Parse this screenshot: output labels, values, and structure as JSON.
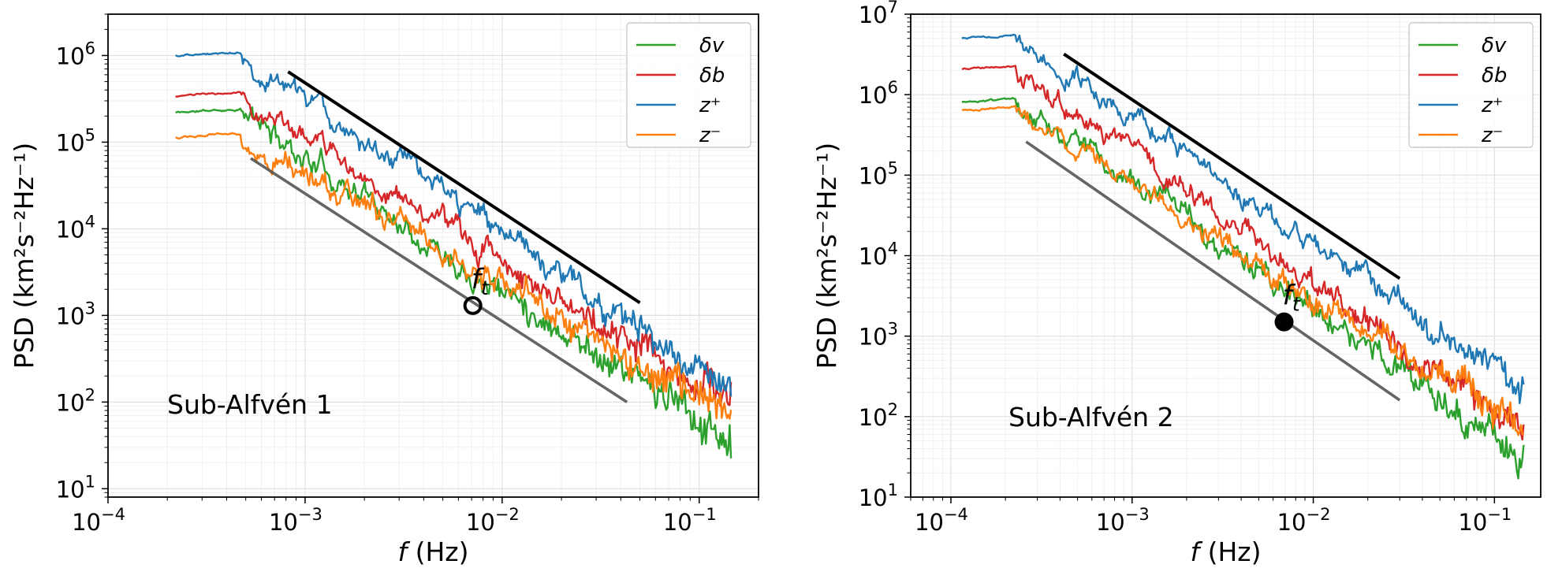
{
  "chart_data": [
    {
      "type": "line",
      "title": "",
      "xlabel_italic": "f",
      "xlabel_rest": " (Hz)",
      "ylabel": "PSD (km²s⁻²Hz⁻¹)",
      "xscale": "log",
      "yscale": "log",
      "xlim": [
        0.0001,
        0.2
      ],
      "ylim": [
        8,
        3000000
      ],
      "grid": true,
      "legend_position": "top-right",
      "annotation": "Sub-Alfvén 1",
      "point_label": "ft",
      "x_ticks": [
        {
          "value": 0.0001,
          "base": "10",
          "exp": "−4"
        },
        {
          "value": 0.001,
          "base": "10",
          "exp": "−3"
        },
        {
          "value": 0.01,
          "base": "10",
          "exp": "−2"
        },
        {
          "value": 0.1,
          "base": "10",
          "exp": "−1"
        }
      ],
      "y_ticks": [
        {
          "value": 10,
          "base": "10",
          "exp": "1"
        },
        {
          "value": 100,
          "base": "10",
          "exp": "2"
        },
        {
          "value": 1000,
          "base": "10",
          "exp": "3"
        },
        {
          "value": 10000,
          "base": "10",
          "exp": "4"
        },
        {
          "value": 100000,
          "base": "10",
          "exp": "5"
        },
        {
          "value": 1000000,
          "base": "10",
          "exp": "6"
        }
      ],
      "series": [
        {
          "name": "δv",
          "label": "δv",
          "color": "#2ca02c",
          "x_start": 0.00022,
          "x_end": 0.145,
          "flat_level": 220000,
          "knee": 0.00047,
          "end_level": 35,
          "noise": 0.12,
          "seed": 11,
          "bump_amp": 0.35
        },
        {
          "name": "δb",
          "label": "δb",
          "color": "#d62728",
          "x_start": 0.00022,
          "x_end": 0.145,
          "flat_level": 340000,
          "knee": 0.00047,
          "end_level": 90,
          "noise": 0.1,
          "seed": 23,
          "bump_amp": 0.3
        },
        {
          "name": "z+",
          "label": "z⁺",
          "color": "#1f77b4",
          "x_start": 0.00022,
          "x_end": 0.145,
          "flat_level": 1000000,
          "knee": 0.00047,
          "end_level": 140,
          "noise": 0.09,
          "seed": 37,
          "bump_amp": 0.3
        },
        {
          "name": "z−",
          "label": "z⁻",
          "color": "#ff7f0e",
          "x_start": 0.00022,
          "x_end": 0.145,
          "flat_level": 115000,
          "knee": 0.00047,
          "end_level": 70,
          "noise": 0.11,
          "seed": 53,
          "bump_amp": 0.35
        }
      ],
      "fit_lines": [
        {
          "color": "#000000",
          "x": [
            0.00082,
            0.05
          ],
          "y": [
            650000,
            1400
          ]
        },
        {
          "color": "#555555",
          "x": [
            0.00053,
            0.043
          ],
          "y": [
            65000,
            100
          ]
        }
      ],
      "point": {
        "x": 0.0071,
        "y": 1300,
        "filled": false
      }
    },
    {
      "type": "line",
      "title": "",
      "xlabel_italic": "f",
      "xlabel_rest": " (Hz)",
      "ylabel": "PSD (km²s⁻²Hz⁻¹)",
      "xscale": "log",
      "yscale": "log",
      "xlim": [
        6e-05,
        0.18
      ],
      "ylim": [
        10,
        10000000
      ],
      "grid": true,
      "legend_position": "top-right",
      "annotation": "Sub-Alfvén 2",
      "point_label": "ft",
      "x_ticks": [
        {
          "value": 0.0001,
          "base": "10",
          "exp": "−4"
        },
        {
          "value": 0.001,
          "base": "10",
          "exp": "−3"
        },
        {
          "value": 0.01,
          "base": "10",
          "exp": "−2"
        },
        {
          "value": 0.1,
          "base": "10",
          "exp": "−1"
        }
      ],
      "y_ticks": [
        {
          "value": 10,
          "base": "10",
          "exp": "1"
        },
        {
          "value": 100,
          "base": "10",
          "exp": "2"
        },
        {
          "value": 1000,
          "base": "10",
          "exp": "3"
        },
        {
          "value": 10000,
          "base": "10",
          "exp": "4"
        },
        {
          "value": 100000,
          "base": "10",
          "exp": "5"
        },
        {
          "value": 1000000,
          "base": "10",
          "exp": "6"
        },
        {
          "value": 10000000,
          "base": "10",
          "exp": "7"
        }
      ],
      "series": [
        {
          "name": "δv",
          "label": "δv",
          "color": "#2ca02c",
          "x_start": 0.000115,
          "x_end": 0.145,
          "flat_level": 800000,
          "knee": 0.00023,
          "end_level": 30,
          "noise": 0.12,
          "seed": 67,
          "bump_amp": 0.35
        },
        {
          "name": "δb",
          "label": "δb",
          "color": "#d62728",
          "x_start": 0.000115,
          "x_end": 0.145,
          "flat_level": 2100000,
          "knee": 0.00023,
          "end_level": 60,
          "noise": 0.1,
          "seed": 79,
          "bump_amp": 0.3
        },
        {
          "name": "z+",
          "label": "z⁺",
          "color": "#1f77b4",
          "x_start": 0.000115,
          "x_end": 0.145,
          "flat_level": 5000000,
          "knee": 0.00023,
          "end_level": 230,
          "noise": 0.09,
          "seed": 97,
          "bump_amp": 0.3
        },
        {
          "name": "z−",
          "label": "z⁻",
          "color": "#ff7f0e",
          "x_start": 0.000115,
          "x_end": 0.145,
          "flat_level": 650000,
          "knee": 0.00023,
          "end_level": 70,
          "noise": 0.11,
          "seed": 101,
          "bump_amp": 0.35
        }
      ],
      "fit_lines": [
        {
          "color": "#000000",
          "x": [
            0.00042,
            0.03
          ],
          "y": [
            3200000,
            5200
          ]
        },
        {
          "color": "#555555",
          "x": [
            0.00026,
            0.03
          ],
          "y": [
            260000,
            160
          ]
        }
      ],
      "point": {
        "x": 0.0069,
        "y": 1500,
        "filled": true
      }
    }
  ]
}
